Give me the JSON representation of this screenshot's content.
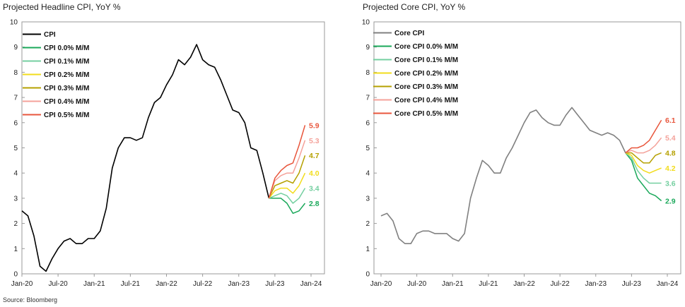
{
  "titles": {
    "left": "Projected Headline CPI, YoY %",
    "right": "Projected Core CPI, YoY %"
  },
  "source": "Source: Bloomberg",
  "colors": {
    "black": "#000000",
    "gray": "#808080",
    "s00": "#1aa85a",
    "s01": "#74cfa0",
    "s02": "#f2dc1c",
    "s03": "#b5a000",
    "s04": "#f4a29a",
    "s05": "#e8563c"
  },
  "chart_data": [
    {
      "type": "line",
      "title": "Projected Headline CPI, YoY %",
      "ylim": [
        0,
        10
      ],
      "yticks": [
        "0",
        "1",
        "2",
        "3",
        "4",
        "5",
        "6",
        "7",
        "8",
        "9",
        "10"
      ],
      "xticks": [
        "Jan-20",
        "Jul-20",
        "Jan-21",
        "Jul-21",
        "Jan-22",
        "Jul-22",
        "Jan-23",
        "Jul-23",
        "Jan-24"
      ],
      "x_start": "2020-01",
      "legend_position": "top-left",
      "series": [
        {
          "name": "CPI",
          "start": "2020-01",
          "color": "#000000",
          "values": [
            2.5,
            2.3,
            1.5,
            0.3,
            0.1,
            0.6,
            1.0,
            1.3,
            1.4,
            1.2,
            1.2,
            1.4,
            1.4,
            1.7,
            2.6,
            4.2,
            5.0,
            5.4,
            5.4,
            5.3,
            5.4,
            6.2,
            6.8,
            7.0,
            7.5,
            7.9,
            8.5,
            8.3,
            8.6,
            9.1,
            8.5,
            8.3,
            8.2,
            7.7,
            7.1,
            6.5,
            6.4,
            6.0,
            5.0,
            4.9,
            4.0,
            3.0
          ]
        },
        {
          "name": "CPI 0.0% M/M",
          "start": "2023-06",
          "color": "#1aa85a",
          "end_label": "2.8",
          "values": [
            3.0,
            3.0,
            3.0,
            2.8,
            2.4,
            2.5,
            2.8
          ]
        },
        {
          "name": "CPI 0.1% M/M",
          "start": "2023-06",
          "color": "#74cfa0",
          "end_label": "3.4",
          "values": [
            3.0,
            3.1,
            3.2,
            3.1,
            2.8,
            3.0,
            3.4
          ]
        },
        {
          "name": "CPI 0.2% M/M",
          "start": "2023-06",
          "color": "#f2dc1c",
          "end_label": "4.0",
          "values": [
            3.0,
            3.3,
            3.4,
            3.4,
            3.2,
            3.5,
            4.0
          ]
        },
        {
          "name": "CPI 0.3% M/M",
          "start": "2023-06",
          "color": "#b5a000",
          "end_label": "4.7",
          "values": [
            3.0,
            3.5,
            3.6,
            3.7,
            3.6,
            4.0,
            4.7
          ]
        },
        {
          "name": "CPI 0.4% M/M",
          "start": "2023-06",
          "color": "#f4a29a",
          "end_label": "5.3",
          "values": [
            3.0,
            3.7,
            3.9,
            4.0,
            4.0,
            4.6,
            5.3
          ]
        },
        {
          "name": "CPI 0.5% M/M",
          "start": "2023-06",
          "color": "#e8563c",
          "end_label": "5.9",
          "values": [
            3.0,
            3.8,
            4.1,
            4.3,
            4.4,
            5.1,
            5.9
          ]
        }
      ]
    },
    {
      "type": "line",
      "title": "Projected Core CPI, YoY %",
      "ylim": [
        0,
        10
      ],
      "yticks": [
        "0",
        "1",
        "2",
        "3",
        "4",
        "5",
        "6",
        "7",
        "8",
        "9",
        "10"
      ],
      "xticks": [
        "Jan-20",
        "Jul-20",
        "Jan-21",
        "Jul-21",
        "Jan-22",
        "Jul-22",
        "Jan-23",
        "Jul-23",
        "Jan-24"
      ],
      "x_start": "2020-01",
      "legend_position": "top-left",
      "series": [
        {
          "name": "Core CPI",
          "start": "2020-01",
          "color": "#808080",
          "values": [
            2.3,
            2.4,
            2.1,
            1.4,
            1.2,
            1.2,
            1.6,
            1.7,
            1.7,
            1.6,
            1.6,
            1.6,
            1.4,
            1.3,
            1.6,
            3.0,
            3.8,
            4.5,
            4.3,
            4.0,
            4.0,
            4.6,
            5.0,
            5.5,
            6.0,
            6.4,
            6.5,
            6.2,
            6.0,
            5.9,
            5.9,
            6.3,
            6.6,
            6.3,
            6.0,
            5.7,
            5.6,
            5.5,
            5.6,
            5.5,
            5.3,
            4.8
          ]
        },
        {
          "name": "Core CPI 0.0% M/M",
          "start": "2023-06",
          "color": "#1aa85a",
          "end_label": "2.9",
          "values": [
            4.8,
            4.5,
            3.8,
            3.5,
            3.2,
            3.1,
            2.9
          ]
        },
        {
          "name": "Core CPI 0.1% M/M",
          "start": "2023-06",
          "color": "#74cfa0",
          "end_label": "3.6",
          "values": [
            4.8,
            4.6,
            4.1,
            3.8,
            3.6,
            3.6,
            3.6
          ]
        },
        {
          "name": "Core CPI 0.2% M/M",
          "start": "2023-06",
          "color": "#f2dc1c",
          "end_label": "4.2",
          "values": [
            4.8,
            4.7,
            4.3,
            4.1,
            4.0,
            4.1,
            4.2
          ]
        },
        {
          "name": "Core CPI 0.3% M/M",
          "start": "2023-06",
          "color": "#b5a000",
          "end_label": "4.8",
          "values": [
            4.8,
            4.8,
            4.6,
            4.4,
            4.4,
            4.7,
            4.8
          ]
        },
        {
          "name": "Core CPI 0.4% M/M",
          "start": "2023-06",
          "color": "#f4a29a",
          "end_label": "5.4",
          "values": [
            4.8,
            4.9,
            4.8,
            4.8,
            4.9,
            5.1,
            5.4
          ]
        },
        {
          "name": "Core CPI 0.5% M/M",
          "start": "2023-06",
          "color": "#e8563c",
          "end_label": "6.1",
          "values": [
            4.8,
            5.0,
            5.0,
            5.1,
            5.3,
            5.7,
            6.1
          ]
        }
      ]
    }
  ]
}
